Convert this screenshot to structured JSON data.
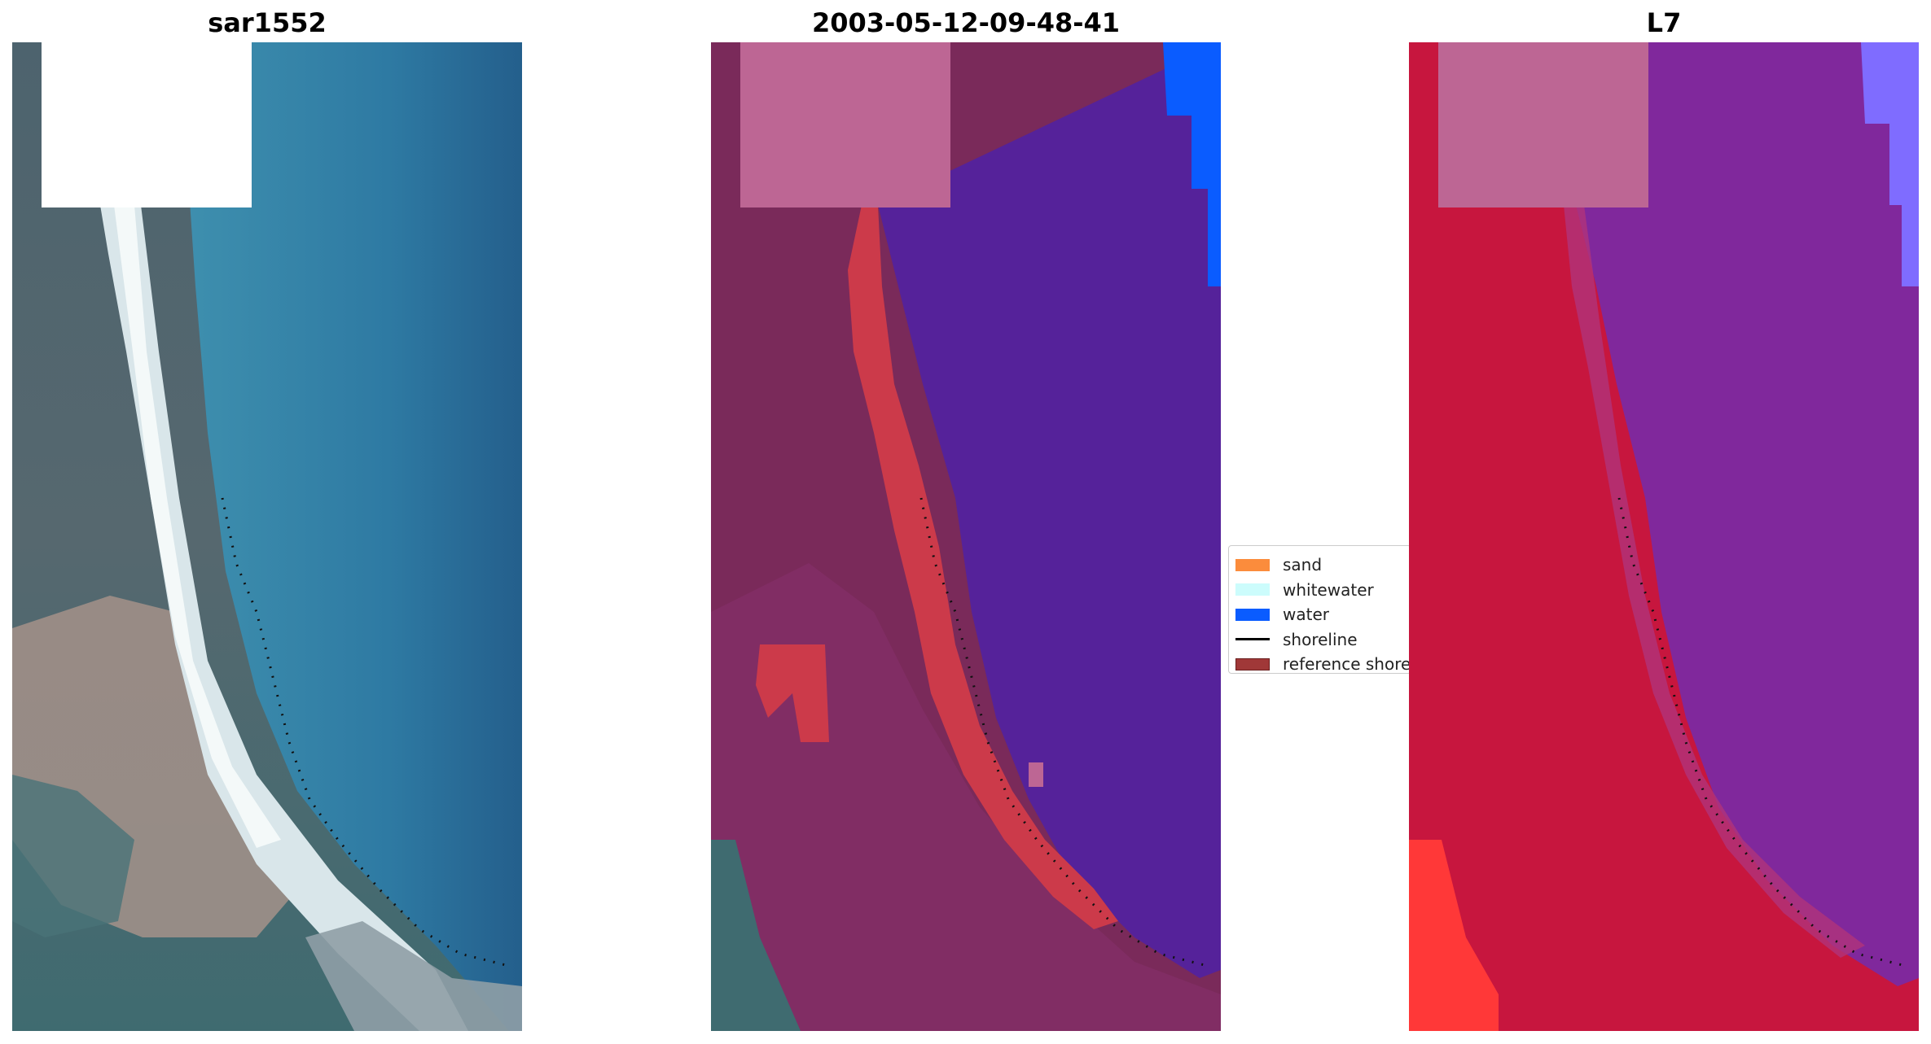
{
  "panels": [
    {
      "title": "sar1552",
      "kind": "rgb"
    },
    {
      "title": "2003-05-12-09-48-41",
      "kind": "classified"
    },
    {
      "title": "L7",
      "kind": "false-color"
    }
  ],
  "legend": {
    "items": [
      {
        "label": "sand",
        "color": "#fb8c3c",
        "type": "patch"
      },
      {
        "label": "whitewater",
        "color": "#ccfcfc",
        "type": "patch"
      },
      {
        "label": "water",
        "color": "#0a5cff",
        "type": "patch"
      },
      {
        "label": "shoreline",
        "color": "#000000",
        "type": "line"
      },
      {
        "label": "reference shoreline",
        "color": "#a03838",
        "type": "patch"
      }
    ]
  },
  "colors": {
    "rgb_land": "#4f6772",
    "rgb_water": "#2f7fa6",
    "rgb_beach": "#e6eef0",
    "rgb_sediment": "#a7948b",
    "class_land": "#7a2a5a",
    "class_water": "#55229a",
    "class_sand_red": "#cc3a4a",
    "class_mask": "#bd6694",
    "class_water_blue": "#0a5cff",
    "fc_land": "#c7163e",
    "fc_water": "#80289c",
    "fc_mask": "#bd6694",
    "fc_bright_red": "#ff3838"
  }
}
